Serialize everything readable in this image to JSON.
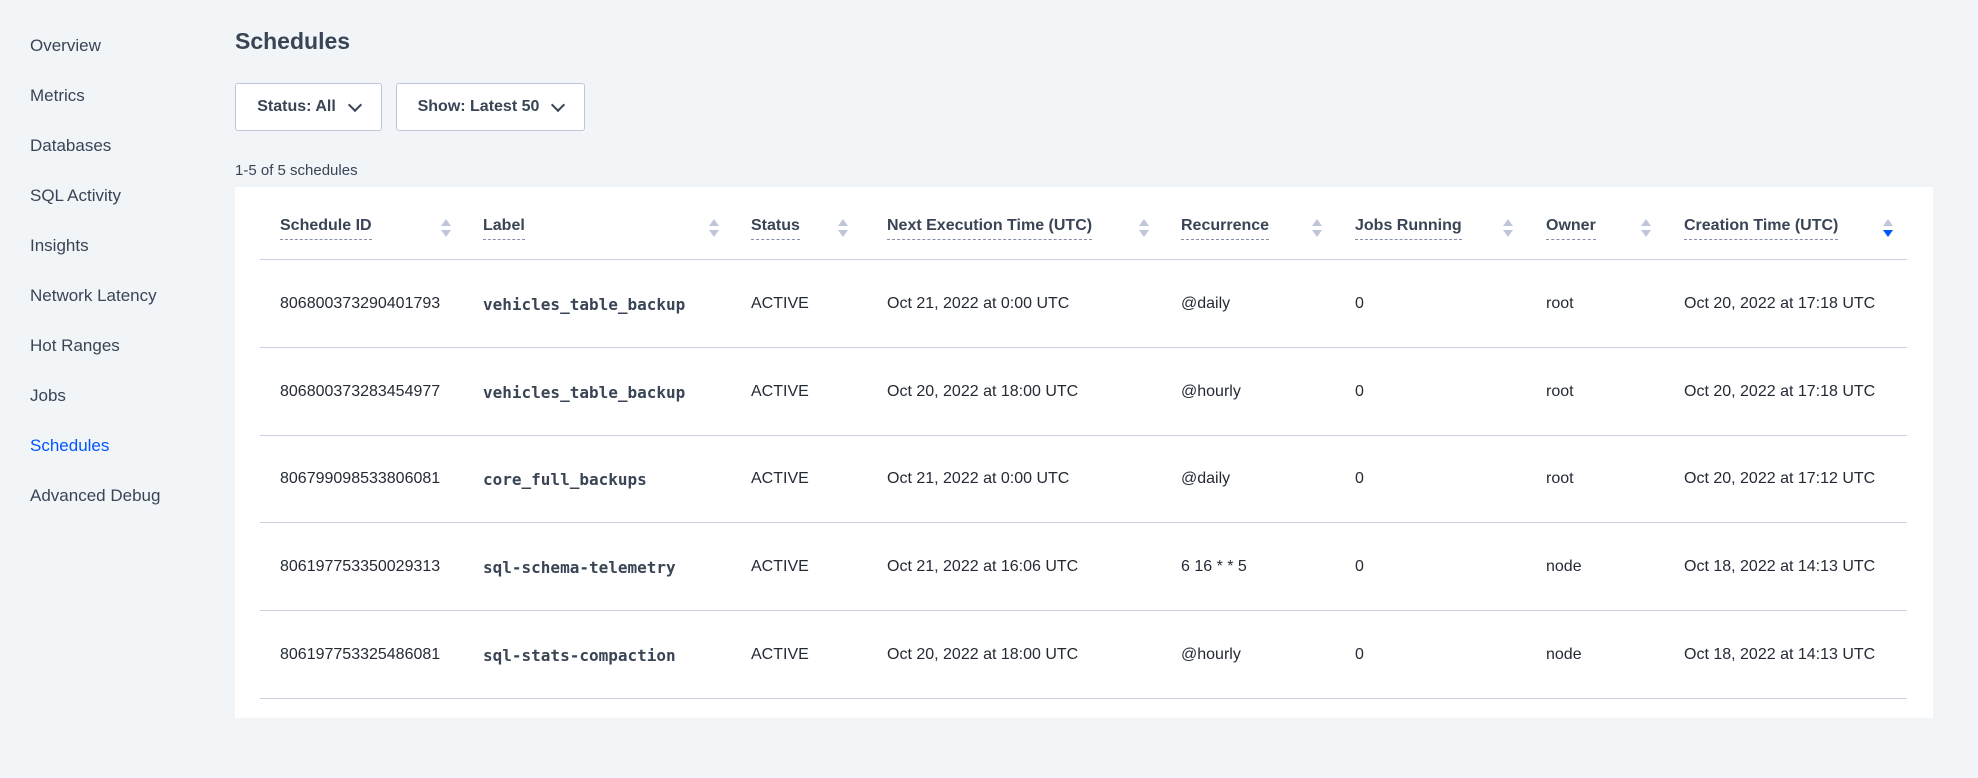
{
  "sidebar": {
    "items": [
      {
        "label": "Overview"
      },
      {
        "label": "Metrics"
      },
      {
        "label": "Databases"
      },
      {
        "label": "SQL Activity"
      },
      {
        "label": "Insights"
      },
      {
        "label": "Network Latency"
      },
      {
        "label": "Hot Ranges"
      },
      {
        "label": "Jobs"
      },
      {
        "label": "Schedules",
        "active": true
      },
      {
        "label": "Advanced Debug"
      }
    ]
  },
  "page": {
    "title": "Schedules",
    "status_filter": "Status: All",
    "show_filter": "Show: Latest 50",
    "count": "1-5 of 5 schedules"
  },
  "colors": {
    "accent": "#0055ff",
    "text": "#394455",
    "background": "#f2f5f8"
  },
  "table": {
    "columns": [
      "Schedule ID",
      "Label",
      "Status",
      "Next Execution Time (UTC)",
      "Recurrence",
      "Jobs Running",
      "Owner",
      "Creation Time (UTC)"
    ],
    "sorted_column": "Creation Time (UTC)",
    "sort_direction": "descending",
    "rows": [
      [
        "806800373290401793",
        "vehicles_table_backup",
        "ACTIVE",
        "Oct 21, 2022 at 0:00 UTC",
        "@daily",
        "0",
        "root",
        "Oct 20, 2022 at 17:18 UTC"
      ],
      [
        "806800373283454977",
        "vehicles_table_backup",
        "ACTIVE",
        "Oct 20, 2022 at 18:00 UTC",
        "@hourly",
        "0",
        "root",
        "Oct 20, 2022 at 17:18 UTC"
      ],
      [
        "806799098533806081",
        "core_full_backups",
        "ACTIVE",
        "Oct 21, 2022 at 0:00 UTC",
        "@daily",
        "0",
        "root",
        "Oct 20, 2022 at 17:12 UTC"
      ],
      [
        "806197753350029313",
        "sql-schema-telemetry",
        "ACTIVE",
        "Oct 21, 2022 at 16:06 UTC",
        "6 16 * * 5",
        "0",
        "node",
        "Oct 18, 2022 at 14:13 UTC"
      ],
      [
        "806197753325486081",
        "sql-stats-compaction",
        "ACTIVE",
        "Oct 20, 2022 at 18:00 UTC",
        "@hourly",
        "0",
        "node",
        "Oct 18, 2022 at 14:13 UTC"
      ]
    ]
  }
}
